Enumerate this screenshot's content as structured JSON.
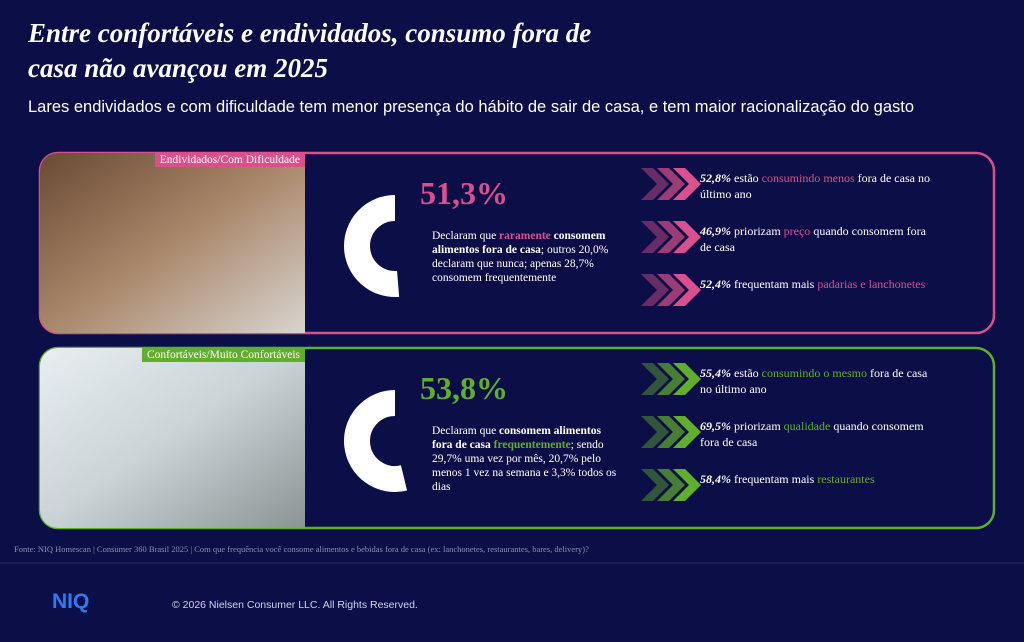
{
  "header": {
    "title_line1": "Entre confortáveis e endividados, consumo fora de",
    "title_line2": "casa não avançou em 2025",
    "subtitle": "Lares endividados e com dificuldade tem menor presença do hábito de sair de casa, e tem maior racionalização do gasto"
  },
  "cards": [
    {
      "tag": "Endividados/Com Dificuldade",
      "color": "#d9508c",
      "stat": {
        "value": 51.3,
        "label": "51,3%"
      },
      "description": [
        [
          "Declaram que ",
          "plain"
        ],
        [
          "raramente",
          "accent"
        ],
        [
          " consomem alimentos fora de casa",
          "bold"
        ],
        [
          "; outros 20,0% declaram que nunca; apenas 28,7% consomem frequentemente",
          "plain"
        ]
      ],
      "items": [
        [
          [
            "52,8%",
            "num"
          ],
          [
            " estão ",
            "plain"
          ],
          [
            "consumindo menos",
            "hl"
          ],
          [
            " fora de casa no último ano",
            "plain"
          ]
        ],
        [
          [
            "46,9%",
            "num"
          ],
          [
            " priorizam ",
            "plain"
          ],
          [
            "preço",
            "hl"
          ],
          [
            " quando consomem fora de casa",
            "plain"
          ]
        ],
        [
          [
            "52,4%",
            "num"
          ],
          [
            " frequentam mais ",
            "plain"
          ],
          [
            "padarias e lanchonetes",
            "hl"
          ]
        ]
      ]
    },
    {
      "tag": "Confortáveis/Muito Confortáveis",
      "color": "#5fae2c",
      "stat": {
        "value": 53.8,
        "label": "53,8%"
      },
      "description": [
        [
          "Declaram que ",
          "plain"
        ],
        [
          "consomem alimentos fora de casa",
          "bold"
        ],
        [
          " ",
          "plain"
        ],
        [
          "frequentemente",
          "accent"
        ],
        [
          "; sendo 29,7% uma vez por mês, 20,7% pelo menos 1 vez na semana e 3,3% todos os dias",
          "plain"
        ]
      ],
      "items": [
        [
          [
            "55,4%",
            "num"
          ],
          [
            " estão ",
            "plain"
          ],
          [
            "consumindo o mesmo",
            "hl"
          ],
          [
            " fora de casa no último ano",
            "plain"
          ]
        ],
        [
          [
            "69,5%",
            "num"
          ],
          [
            " priorizam ",
            "plain"
          ],
          [
            "qualidade",
            "hl"
          ],
          [
            " quando consomem fora de casa",
            "plain"
          ]
        ],
        [
          [
            "58,4%",
            "num"
          ],
          [
            " frequentam mais ",
            "plain"
          ],
          [
            "restaurantes",
            "hl"
          ]
        ]
      ]
    }
  ],
  "footer": {
    "source": "Fonte: NIQ Homescan | Consumer 360 Brasil 2025 | Com que frequência você consome alimentos e bebidas fora de casa (ex: lanchonetes, restaurantes, bares, delivery)?",
    "logo": "NIQ",
    "copyright": "© 2026 Nielsen Consumer LLC. All Rights Reserved."
  }
}
